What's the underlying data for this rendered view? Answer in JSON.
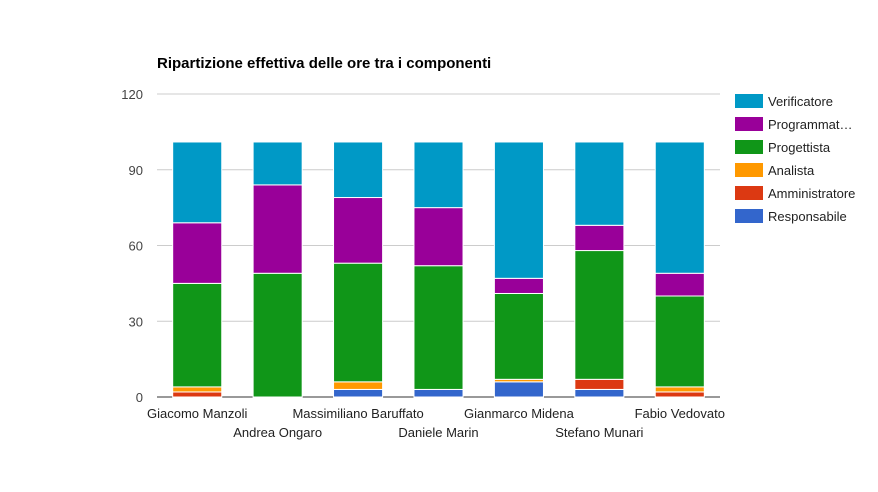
{
  "chart_data": {
    "type": "bar",
    "stacked": true,
    "title": "Ripartizione effettiva delle ore tra i componenti",
    "xlabel": "",
    "ylabel": "",
    "ylim": [
      0,
      120
    ],
    "yticks": [
      0,
      30,
      60,
      90,
      120
    ],
    "grid": true,
    "legend_position": "right",
    "categories": [
      "Giacomo Manzoli",
      "Andrea Ongaro",
      "Massimiliano Baruffato",
      "Daniele Marin",
      "Gianmarco Midena",
      "Stefano Munari",
      "Fabio Vedovato"
    ],
    "series": [
      {
        "name": "Responsabile",
        "color": "#3366cc",
        "values": [
          0,
          0,
          3,
          3,
          6,
          3,
          0
        ]
      },
      {
        "name": "Amministratore",
        "color": "#dc3912",
        "values": [
          2,
          0,
          0,
          0,
          0,
          4,
          2
        ]
      },
      {
        "name": "Analista",
        "color": "#ff9900",
        "values": [
          2,
          0,
          3,
          0,
          1,
          0,
          2
        ]
      },
      {
        "name": "Progettista",
        "color": "#109618",
        "values": [
          41,
          49,
          47,
          49,
          34,
          51,
          36
        ]
      },
      {
        "name": "Programmat…",
        "color": "#990099",
        "values": [
          24,
          35,
          26,
          23,
          6,
          10,
          9
        ]
      },
      {
        "name": "Verificatore",
        "color": "#0099c6",
        "values": [
          32,
          17,
          22,
          26,
          54,
          33,
          52
        ]
      }
    ],
    "legend_order": [
      "Verificatore",
      "Programmat…",
      "Progettista",
      "Analista",
      "Amministratore",
      "Responsabile"
    ]
  }
}
